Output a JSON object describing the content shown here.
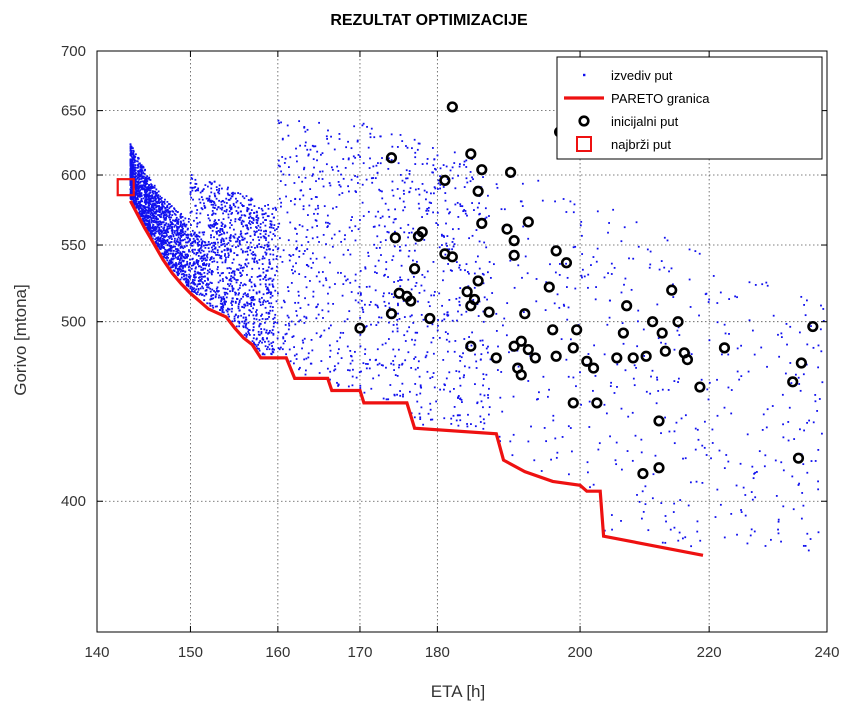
{
  "chart_data": {
    "type": "scatter",
    "title": "REZULTAT OPTIMIZACIJE",
    "xlabel": "ETA [h]",
    "ylabel": "Gorivo [mtona]",
    "x_scale": "log",
    "y_scale": "log",
    "xlim": [
      140,
      240
    ],
    "ylim": [
      340,
      700
    ],
    "x_ticks": [
      140,
      150,
      160,
      170,
      180,
      200,
      220,
      240
    ],
    "y_ticks": [
      400,
      500,
      550,
      600,
      650,
      700
    ],
    "grid": true,
    "legend_position": "top-right",
    "colors": {
      "izvediv_put": "#1010ee",
      "pareto": "#ee1111",
      "inicijalni": "#000000",
      "najbrzi": "#ee1111"
    },
    "legend": [
      {
        "key": "izvediv",
        "label": "izvediv put"
      },
      {
        "key": "pareto",
        "label": "PARETO granica"
      },
      {
        "key": "inicijalni",
        "label": "inicijalni put"
      },
      {
        "key": "najbrzi",
        "label": "najbrži put"
      }
    ],
    "series": [
      {
        "name": "PARETO granica",
        "style": "line",
        "points": [
          [
            143.5,
            581
          ],
          [
            145,
            562
          ],
          [
            146,
            551
          ],
          [
            147,
            540
          ],
          [
            148,
            531
          ],
          [
            149,
            524
          ],
          [
            150,
            518
          ],
          [
            151,
            513
          ],
          [
            152,
            508
          ],
          [
            154,
            503
          ],
          [
            155,
            496
          ],
          [
            156,
            490
          ],
          [
            157,
            486
          ],
          [
            158,
            478
          ],
          [
            161,
            478
          ],
          [
            162,
            466
          ],
          [
            166,
            466
          ],
          [
            166.5,
            459
          ],
          [
            170,
            459
          ],
          [
            170.5,
            452
          ],
          [
            176,
            452
          ],
          [
            177,
            438
          ],
          [
            188,
            435
          ],
          [
            189,
            421
          ],
          [
            192,
            415
          ],
          [
            196,
            410
          ],
          [
            200,
            408
          ],
          [
            201,
            405
          ],
          [
            203,
            405
          ],
          [
            203.5,
            383
          ],
          [
            219,
            374
          ]
        ]
      },
      {
        "name": "inicijalni put",
        "style": "ring",
        "points": [
          [
            174,
            613
          ],
          [
            182,
            653
          ],
          [
            184.5,
            616
          ],
          [
            186,
            604
          ],
          [
            181,
            596
          ],
          [
            185.5,
            588
          ],
          [
            190,
            602
          ],
          [
            197,
            633
          ],
          [
            174.5,
            555
          ],
          [
            177.5,
            556
          ],
          [
            178,
            559
          ],
          [
            181,
            544
          ],
          [
            186,
            565
          ],
          [
            182,
            542
          ],
          [
            189.5,
            561
          ],
          [
            190.5,
            553
          ],
          [
            190.5,
            543
          ],
          [
            192.5,
            566
          ],
          [
            196.5,
            546
          ],
          [
            198,
            538
          ],
          [
            177,
            534
          ],
          [
            175,
            518
          ],
          [
            176,
            516
          ],
          [
            176.5,
            513
          ],
          [
            184,
            519
          ],
          [
            185.5,
            526
          ],
          [
            185,
            514
          ],
          [
            184.5,
            510
          ],
          [
            187,
            506
          ],
          [
            192,
            505
          ],
          [
            195.5,
            522
          ],
          [
            174,
            505
          ],
          [
            170,
            496
          ],
          [
            179,
            502
          ],
          [
            184.5,
            485
          ],
          [
            188,
            478
          ],
          [
            190.5,
            485
          ],
          [
            191.5,
            488
          ],
          [
            192.5,
            483
          ],
          [
            193.5,
            478
          ],
          [
            196.5,
            479
          ],
          [
            199,
            484
          ],
          [
            191,
            472
          ],
          [
            191.5,
            468
          ],
          [
            196,
            495
          ],
          [
            199.5,
            495
          ],
          [
            201,
            476
          ],
          [
            202,
            472
          ],
          [
            205.5,
            478
          ],
          [
            206.5,
            493
          ],
          [
            207,
            510
          ],
          [
            208,
            478
          ],
          [
            210,
            479
          ],
          [
            211,
            500
          ],
          [
            212.5,
            493
          ],
          [
            213,
            482
          ],
          [
            214,
            520
          ],
          [
            215,
            500
          ],
          [
            216,
            481
          ],
          [
            216.5,
            477
          ],
          [
            199,
            452
          ],
          [
            202.5,
            452
          ],
          [
            212,
            442
          ],
          [
            218.5,
            461
          ],
          [
            222.5,
            484
          ],
          [
            209.5,
            414
          ],
          [
            212,
            417
          ],
          [
            234,
            464
          ],
          [
            235.5,
            475
          ],
          [
            237.5,
            497
          ],
          [
            235,
            422
          ]
        ]
      },
      {
        "name": "najbrži put",
        "style": "square",
        "points": [
          [
            143,
            591
          ]
        ]
      },
      {
        "name": "izvediv put",
        "style": "dot",
        "generated": true,
        "count": 4200
      }
    ]
  }
}
